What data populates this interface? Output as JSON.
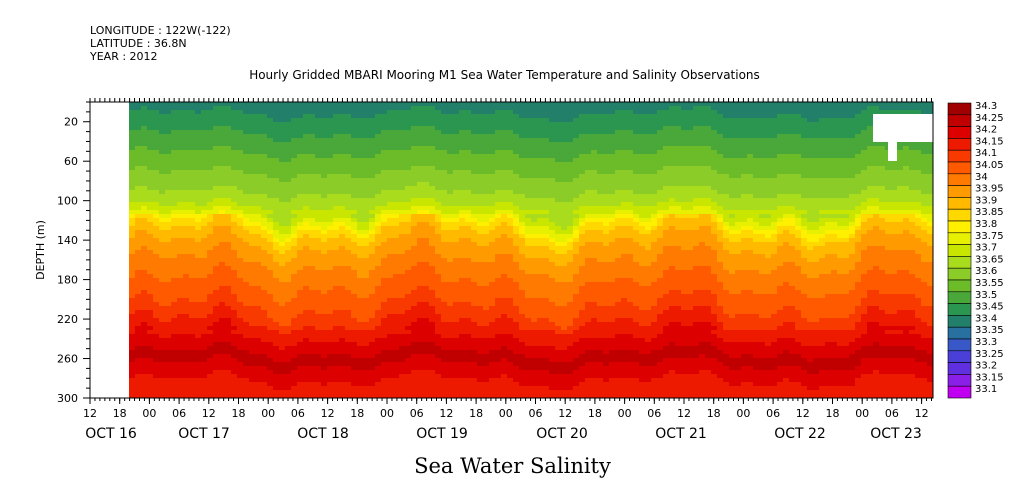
{
  "meta": {
    "longitude": "LONGITUDE : 122W(-122)",
    "latitude": "LATITUDE : 36.8N",
    "year": "YEAR : 2012"
  },
  "chart_data": {
    "type": "heatmap",
    "title": "Hourly Gridded MBARI Mooring M1 Sea Water Temperature and Salinity Observations",
    "xlabel": "Sea Water Salinity",
    "ylabel": "DEPTH (m)",
    "xlim": [
      "2012-10-16T12:00",
      "2012-10-23T14:00"
    ],
    "ylim": [
      300,
      0
    ],
    "y_ticks": [
      20,
      60,
      100,
      140,
      180,
      220,
      260,
      300
    ],
    "x_hour_ticks": [
      "12",
      "18",
      "00",
      "06",
      "12",
      "18",
      "00",
      "06",
      "12",
      "18",
      "00",
      "06",
      "12",
      "18",
      "00",
      "06",
      "12",
      "18",
      "00",
      "06",
      "12",
      "18",
      "00",
      "06",
      "12",
      "18",
      "00",
      "06",
      "12"
    ],
    "x_date_labels": [
      "OCT 16",
      "OCT 17",
      "OCT 18",
      "OCT 19",
      "OCT 20",
      "OCT 21",
      "OCT 22",
      "OCT 23"
    ],
    "colorbar": {
      "levels": [
        "34.3",
        "34.25",
        "34.2",
        "34.15",
        "34.1",
        "34.05",
        "34",
        "33.95",
        "33.9",
        "33.85",
        "33.8",
        "33.75",
        "33.7",
        "33.65",
        "33.6",
        "33.55",
        "33.5",
        "33.45",
        "33.4",
        "33.35",
        "33.3",
        "33.25",
        "33.2",
        "33.15",
        "33.1"
      ],
      "colors": [
        "#a00000",
        "#c00000",
        "#dc0000",
        "#ee1a00",
        "#f83a00",
        "#ff5a00",
        "#ff7a00",
        "#ff9a00",
        "#ffba00",
        "#ffd800",
        "#fff000",
        "#e6f000",
        "#c8e600",
        "#aadc1e",
        "#8ccc28",
        "#6cbc2a",
        "#4aa83a",
        "#2a9650",
        "#22806a",
        "#2870a0",
        "#3858c8",
        "#4a40d8",
        "#6030e0",
        "#8a20e8",
        "#c000f0"
      ]
    },
    "profile": [
      {
        "depth": 0,
        "value": 33.4
      },
      {
        "depth": 20,
        "value": 33.45
      },
      {
        "depth": 40,
        "value": 33.5
      },
      {
        "depth": 60,
        "value": 33.55
      },
      {
        "depth": 80,
        "value": 33.6
      },
      {
        "depth": 100,
        "value": 33.65
      },
      {
        "depth": 115,
        "value": 33.75
      },
      {
        "depth": 125,
        "value": 33.85
      },
      {
        "depth": 135,
        "value": 33.9
      },
      {
        "depth": 150,
        "value": 33.95
      },
      {
        "depth": 170,
        "value": 34.0
      },
      {
        "depth": 195,
        "value": 34.05
      },
      {
        "depth": 215,
        "value": 34.1
      },
      {
        "depth": 230,
        "value": 34.15
      },
      {
        "depth": 245,
        "value": 34.2
      },
      {
        "depth": 258,
        "value": 34.25
      },
      {
        "depth": 270,
        "value": 34.2
      },
      {
        "depth": 290,
        "value": 34.15
      },
      {
        "depth": 300,
        "value": 34.15
      }
    ]
  }
}
